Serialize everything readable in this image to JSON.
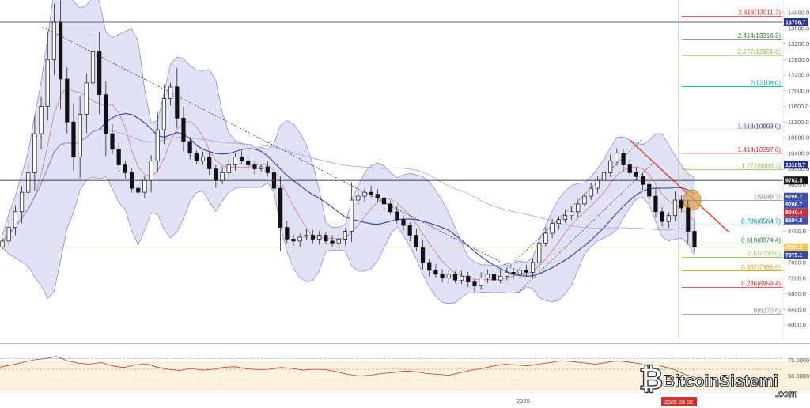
{
  "chart_data": {
    "type": "candlestick",
    "instrument_hint": "BTC price chart with Bollinger Bands, moving averages, Fibonacci extension and RSI",
    "price_axis": {
      "range": [
        5600,
        14300
      ],
      "ticks": [
        6000,
        6400,
        6800,
        7200,
        7600,
        8000,
        8400,
        8800,
        9200,
        9600,
        10000,
        10400,
        10800,
        11200,
        11600,
        12000,
        12400,
        12800,
        13200,
        13600,
        14000
      ],
      "tick_labels": [
        "6000.0",
        "6400.0",
        "6800.0",
        "7200.0",
        "7600.0",
        "8000.0",
        "8400.0",
        "8800.0",
        "9200.0",
        "9600.0",
        "10000.0",
        "10400.0",
        "10800.0",
        "11200.0",
        "11600.0",
        "12000.0",
        "12400.0",
        "12800.0",
        "13200.0",
        "13600.0",
        "14000.0"
      ]
    },
    "fibonacci_levels": [
      {
        "label": "2.618(13911.7)",
        "value": 13911.7,
        "color": "#d32f2f"
      },
      {
        "label": "2.414(13316.3)",
        "value": 13316.3,
        "color": "#2e7d32"
      },
      {
        "label": "2.272(12901.8)",
        "value": 12901.8,
        "color": "#8bc34a"
      },
      {
        "label": "2(12108.0)",
        "value": 12108.0,
        "color": "#00acc1"
      },
      {
        "label": "1.618(10993.0)",
        "value": 10993.0,
        "color": "#283593"
      },
      {
        "label": "1.414(10397.6)",
        "value": 10397.6,
        "color": "#d32f2f"
      },
      {
        "label": "1.272(9983.2)",
        "value": 9983.2,
        "color": "#8bc34a"
      },
      {
        "label": "1(9189.3)",
        "value": 9189.3,
        "color": "#888888"
      },
      {
        "label": "0.786(8564.7)",
        "value": 8564.7,
        "color": "#00838f"
      },
      {
        "label": "0.618(8074.4)",
        "value": 8074.4,
        "color": "#2e7d32"
      },
      {
        "label": "0.5(7730.0)",
        "value": 7730.0,
        "color": "#8bc34a"
      },
      {
        "label": "0.382(7385.6)",
        "value": 7385.6,
        "color": "#d4a017"
      },
      {
        "label": "0.236(6959.4)",
        "value": 6959.4,
        "color": "#d32f2f"
      },
      {
        "label": "0(6270.6)",
        "value": 6270.6,
        "color": "#888888"
      }
    ],
    "price_tags": [
      {
        "label": "13756.7",
        "value": 13756.7,
        "color": "#283593"
      },
      {
        "label": "10105.7",
        "value": 10105.7,
        "color": "#283593"
      },
      {
        "label": "9702.5",
        "value": 9702.5,
        "color": "#111111"
      },
      {
        "label": "9286.7",
        "value": 9286.7,
        "color": "#3f51b5"
      },
      {
        "label": "9286.7",
        "value": 9286.7,
        "color": "#3f51b5"
      },
      {
        "label": "9040.4",
        "value": 9040.4,
        "color": "#d32f2f"
      },
      {
        "label": "8694.5",
        "value": 8694.5,
        "color": "#3f51b5"
      },
      {
        "label": "7990.2",
        "value": 7990.2,
        "color": "#f9c74f"
      },
      {
        "label": "7975.1",
        "value": 7975.1,
        "color": "#3949ab"
      }
    ],
    "horizontal_lines": [
      13756.7,
      9702.5
    ],
    "x_axis": {
      "labels": [
        "2020",
        "2020-03-02"
      ]
    },
    "closes": [
      8150,
      8500,
      8900,
      9400,
      9900,
      10900,
      11600,
      12800,
      13756,
      12300,
      11200,
      10300,
      11400,
      12200,
      13000,
      11900,
      10900,
      10500,
      10100,
      9900,
      9500,
      9400,
      9700,
      10200,
      11000,
      11800,
      12100,
      11300,
      10700,
      10400,
      10200,
      10300,
      10000,
      9700,
      9900,
      10100,
      10300,
      10200,
      10100,
      10000,
      10050,
      9900,
      9500,
      8500,
      8200,
      8150,
      8250,
      8300,
      8200,
      8300,
      8150,
      8100,
      8200,
      8400,
      9200,
      9300,
      9400,
      9350,
      9250,
      9100,
      8900,
      8700,
      8550,
      8300,
      8000,
      7600,
      7400,
      7300,
      7200,
      7300,
      7150,
      7250,
      7100,
      7000,
      7200,
      7300,
      7150,
      7250,
      7350,
      7300,
      7400,
      7350,
      7600,
      8100,
      8350,
      8600,
      8700,
      8800,
      8900,
      9100,
      9300,
      9500,
      9700,
      9900,
      10200,
      10400,
      10100,
      9900,
      9800,
      9600,
      9300,
      8900,
      8650,
      8800,
      9200,
      9000,
      8400,
      7990
    ],
    "rsi": {
      "levels": [
        75,
        50,
        25
      ],
      "level_labels": [
        "75.0000",
        "50.0000"
      ],
      "values": [
        55,
        60,
        66,
        72,
        75,
        80,
        70,
        64,
        62,
        66,
        58,
        54,
        60,
        63,
        55,
        50,
        47,
        52,
        48,
        50,
        55,
        56,
        51,
        49,
        50,
        54,
        52,
        48,
        50,
        49,
        44,
        38,
        34,
        36,
        40,
        42,
        46,
        44,
        40,
        38,
        36,
        42,
        48,
        52,
        58,
        62,
        60,
        58,
        62,
        66,
        70,
        68,
        65,
        62,
        66,
        70,
        67,
        63,
        60,
        57,
        50,
        38,
        30
      ]
    }
  },
  "watermark": {
    "brand": "BitcoinSistemi",
    "suffix": ".com"
  }
}
